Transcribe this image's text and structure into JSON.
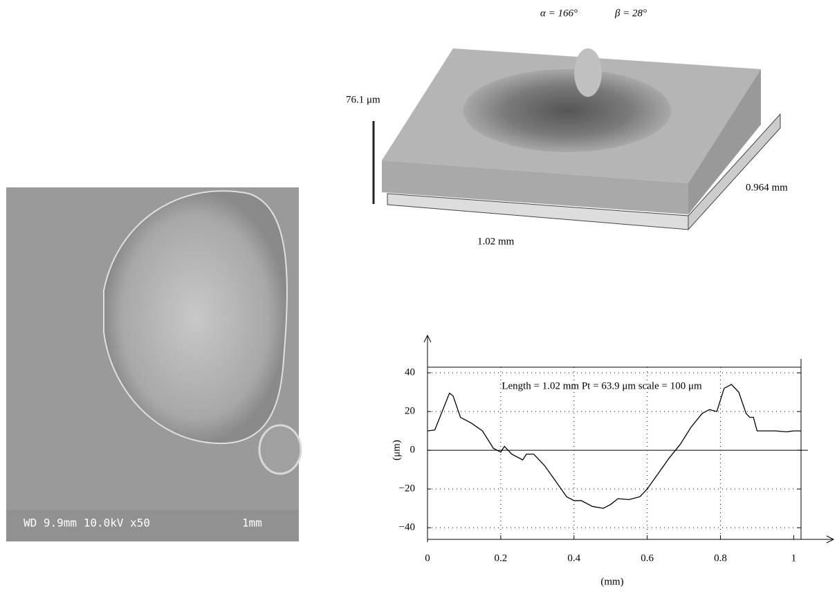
{
  "sem_image": {
    "label": "WD 9.9mm 10.0kV x50",
    "scale": "1mm"
  },
  "surface_3d": {
    "alpha": "α = 166°",
    "beta": "β = 28°",
    "height": "76.1 μm",
    "depth": "0.964 mm",
    "width": "1.02 mm"
  },
  "chart_data": {
    "type": "line",
    "title": "Length = 1.02 mm  Pt = 63.9 μm  scale = 100 μm",
    "x_label": "(mm)",
    "y_label": "(μm)",
    "x": [
      0,
      0.02,
      0.04,
      0.06,
      0.07,
      0.09,
      0.12,
      0.15,
      0.18,
      0.2,
      0.21,
      0.23,
      0.26,
      0.27,
      0.29,
      0.32,
      0.35,
      0.38,
      0.4,
      0.42,
      0.45,
      0.48,
      0.5,
      0.52,
      0.55,
      0.58,
      0.6,
      0.63,
      0.66,
      0.69,
      0.72,
      0.75,
      0.77,
      0.79,
      0.81,
      0.83,
      0.85,
      0.87,
      0.88,
      0.89,
      0.9,
      0.95,
      0.98,
      1.0,
      1.02
    ],
    "series": [
      {
        "color": "#000000",
        "values": [
          10,
          10.5,
          20,
          29.5,
          28,
          17,
          14,
          10,
          1,
          -1,
          2,
          -2,
          -5,
          -2,
          -2,
          -8,
          -16,
          -24,
          -26,
          -26,
          -29,
          -30,
          -28,
          -25,
          -25.5,
          -24,
          -20,
          -12,
          -4,
          3,
          12,
          19,
          21,
          20,
          32,
          34,
          30,
          19,
          17,
          17,
          10,
          10,
          9.5,
          10,
          10
        ]
      }
    ],
    "xlim": [
      0,
      1.02
    ],
    "ylim": [
      -44.6,
      42.9
    ],
    "xticks": [
      0,
      0.2,
      0.4,
      0.6,
      0.8,
      1
    ],
    "yticks": [
      {
        "value": -40,
        "label": "−40"
      },
      {
        "value": -20,
        "label": "−20"
      },
      0,
      20,
      40
    ],
    "grid": true
  }
}
